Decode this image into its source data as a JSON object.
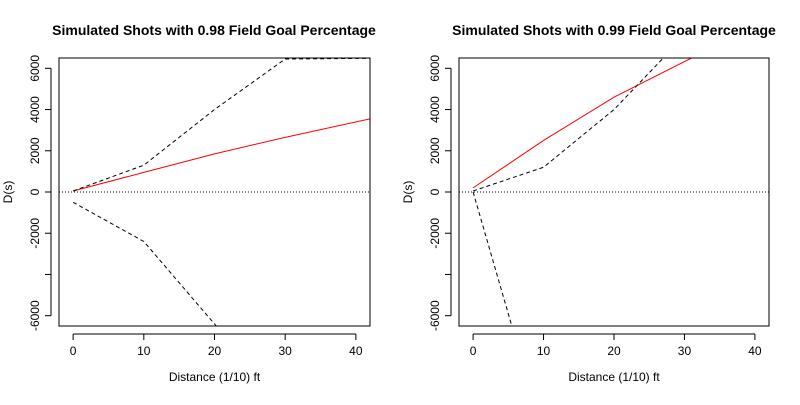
{
  "chart_data": [
    {
      "type": "line",
      "title": "Simulated Shots with 0.98 Field Goal Percentage",
      "xlabel": "Distance (1/10) ft",
      "ylabel": "D(s)",
      "xlim": [
        -2,
        42
      ],
      "ylim": [
        -6500,
        6500
      ],
      "x_ticks": [
        0,
        10,
        20,
        30,
        40
      ],
      "y_ticks": [
        -6000,
        -4000,
        -2000,
        0,
        2000,
        4000,
        6000
      ],
      "y_tick_labels": [
        "-6000",
        "",
        "-2000",
        "0",
        "2000",
        "4000",
        "6000"
      ],
      "grid": false,
      "series": [
        {
          "style": "solid",
          "color": "#ff0000",
          "x": [
            0,
            10,
            20,
            30,
            42
          ],
          "y": [
            50,
            950,
            1850,
            2650,
            3550
          ]
        },
        {
          "style": "dashed",
          "color": "#000000",
          "x": [
            0,
            10,
            20,
            30,
            40,
            42
          ],
          "y": [
            50,
            1300,
            4000,
            6450,
            6480,
            6480
          ]
        },
        {
          "style": "dashed",
          "color": "#000000",
          "x": [
            0,
            10,
            20,
            21
          ],
          "y": [
            -500,
            -2400,
            -6400,
            -6800
          ]
        },
        {
          "style": "dotted",
          "color": "#000000",
          "x": [
            -2,
            42
          ],
          "y": [
            0,
            0
          ]
        }
      ]
    },
    {
      "type": "line",
      "title": "Simulated Shots with 0.99 Field Goal Percentage",
      "xlabel": "Distance (1/10) ft",
      "ylabel": "D(s)",
      "xlim": [
        -2,
        42
      ],
      "ylim": [
        -6500,
        6500
      ],
      "x_ticks": [
        0,
        10,
        20,
        30,
        40
      ],
      "y_ticks": [
        -6000,
        -4000,
        -2000,
        0,
        2000,
        4000,
        6000
      ],
      "y_tick_labels": [
        "-6000",
        "",
        "-2000",
        "0",
        "2000",
        "4000",
        "6000"
      ],
      "grid": false,
      "series": [
        {
          "style": "solid",
          "color": "#ff0000",
          "x": [
            0,
            10,
            20,
            31,
            33
          ],
          "y": [
            200,
            2500,
            4600,
            6500,
            6800
          ]
        },
        {
          "style": "dashed",
          "color": "#000000",
          "x": [
            0,
            10,
            20,
            27,
            28
          ],
          "y": [
            50,
            1200,
            4000,
            6500,
            6800
          ]
        },
        {
          "style": "dashed",
          "color": "#000000",
          "x": [
            0,
            5.5,
            6
          ],
          "y": [
            0,
            -6500,
            -7000
          ]
        },
        {
          "style": "dotted",
          "color": "#000000",
          "x": [
            -2,
            42
          ],
          "y": [
            0,
            0
          ]
        }
      ]
    }
  ]
}
